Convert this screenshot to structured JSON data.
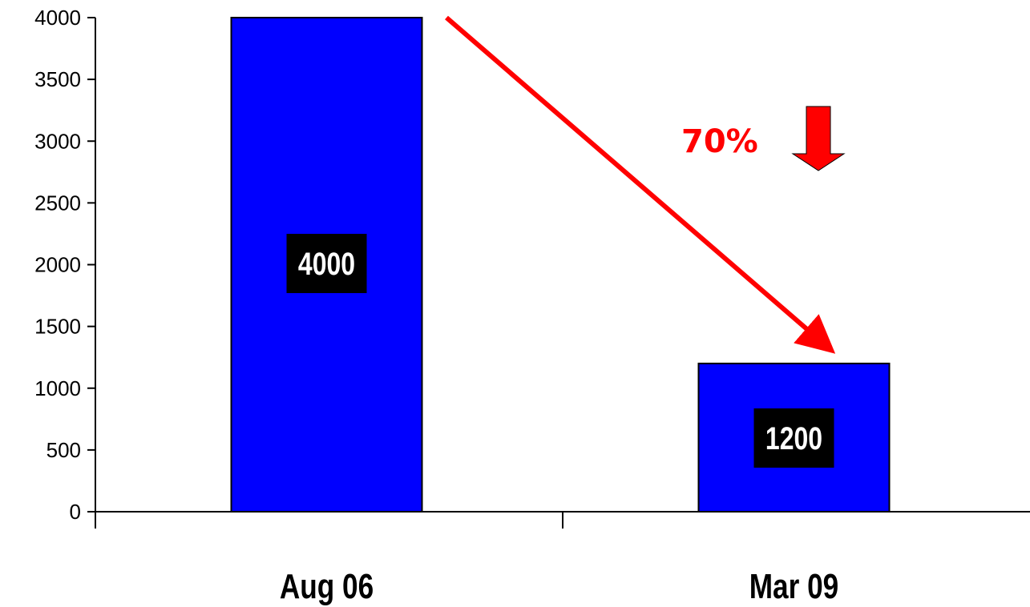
{
  "chart_data": {
    "type": "bar",
    "categories": [
      "Aug 06",
      "Mar 09"
    ],
    "values": [
      4000,
      1200
    ],
    "data_labels": [
      "4000",
      "1200"
    ],
    "ylim": [
      0,
      4000
    ],
    "yticks": [
      0,
      500,
      1000,
      1500,
      2000,
      2500,
      3000,
      3500,
      4000
    ],
    "grid": false,
    "legend": "none",
    "bar_color": "#0000ff",
    "bar_edge_color": "#000000",
    "data_label_background": "#000000",
    "data_label_color": "#ffffff",
    "annotation": {
      "text": "70%",
      "color": "#ff0000",
      "icon": "down-arrow-icon"
    }
  }
}
